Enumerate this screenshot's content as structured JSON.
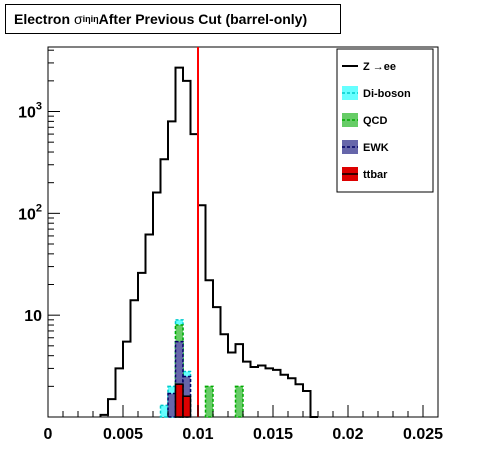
{
  "title": {
    "prefix": "Electron ",
    "sigma": "σ",
    "subscript": "iηiη",
    "suffix": " After Previous Cut (barrel-only)"
  },
  "chart_data": {
    "type": "histogram",
    "y_scale": "log",
    "xlim": [
      0,
      0.026
    ],
    "ylim": [
      1.0,
      4300
    ],
    "bin_width": 0.0005,
    "x_tick_labels": [
      "0",
      "0.005",
      "0.01",
      "0.015",
      "0.02",
      "0.025"
    ],
    "x_tick_values": [
      0,
      0.005,
      0.01,
      0.015,
      0.02,
      0.025
    ],
    "y_tick_labels": [
      {
        "base": "10",
        "exp": "",
        "value": 10
      },
      {
        "base": "10",
        "exp": "2",
        "value": 100
      },
      {
        "base": "10",
        "exp": "3",
        "value": 1000
      }
    ],
    "cut_line": {
      "x": 0.01,
      "color": "#ff0000"
    },
    "legend": [
      {
        "label": "Z →ee",
        "style": "line",
        "color": "#000000"
      },
      {
        "label": "Di-boson",
        "style": "fill",
        "color": "#66ffff",
        "line": "#00cccc"
      },
      {
        "label": "QCD",
        "style": "fill",
        "color": "#66cc66",
        "line": "#00aa00"
      },
      {
        "label": "EWK",
        "style": "fill",
        "color": "#6666aa",
        "line": "#000066"
      },
      {
        "label": "ttbar",
        "style": "fill",
        "color": "#dd0000",
        "line": "#000000"
      }
    ],
    "series": [
      {
        "name": "Z →ee",
        "color": "#000000",
        "bins": [
          [
            0.0035,
            1.05
          ],
          [
            0.004,
            1.5
          ],
          [
            0.0045,
            3.0
          ],
          [
            0.005,
            5.5
          ],
          [
            0.0055,
            14
          ],
          [
            0.006,
            26
          ],
          [
            0.0065,
            62
          ],
          [
            0.007,
            160
          ],
          [
            0.0075,
            340
          ],
          [
            0.008,
            800
          ],
          [
            0.0085,
            2700
          ],
          [
            0.009,
            2000
          ],
          [
            0.0095,
            600
          ],
          [
            0.01,
            120
          ],
          [
            0.0105,
            22
          ],
          [
            0.011,
            12
          ],
          [
            0.0115,
            6.5
          ],
          [
            0.012,
            4.3
          ],
          [
            0.0125,
            5.2
          ],
          [
            0.013,
            3.5
          ],
          [
            0.0135,
            3.1
          ],
          [
            0.014,
            3.2
          ],
          [
            0.0145,
            3.0
          ],
          [
            0.015,
            2.9
          ],
          [
            0.0155,
            2.6
          ],
          [
            0.016,
            2.4
          ],
          [
            0.0165,
            2.1
          ],
          [
            0.017,
            1.8
          ],
          [
            0.0175,
            1.0
          ]
        ]
      },
      {
        "name": "Di-boson",
        "color": "#66ffff",
        "line": "#00cccc",
        "bins": [
          [
            0.0075,
            1.3
          ],
          [
            0.008,
            2.0
          ],
          [
            0.0085,
            9.0
          ],
          [
            0.009,
            2.8
          ]
        ]
      },
      {
        "name": "QCD",
        "color": "#66cc66",
        "line": "#00aa00",
        "bins": [
          [
            0.0085,
            8.0
          ],
          [
            0.0105,
            2.0
          ],
          [
            0.0125,
            2.0
          ]
        ]
      },
      {
        "name": "EWK",
        "color": "#6666aa",
        "line": "#000066",
        "bins": [
          [
            0.008,
            1.7
          ],
          [
            0.0085,
            5.5
          ],
          [
            0.009,
            2.5
          ]
        ]
      },
      {
        "name": "ttbar",
        "color": "#dd0000",
        "line": "#000000",
        "bins": [
          [
            0.0085,
            2.1
          ],
          [
            0.009,
            1.6
          ]
        ]
      }
    ]
  }
}
